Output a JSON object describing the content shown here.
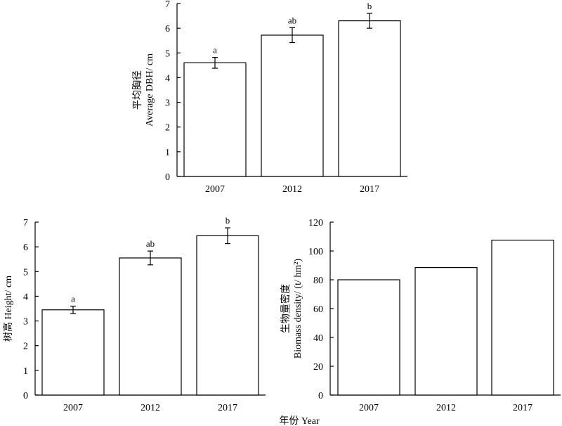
{
  "figure": {
    "shared_xlabel": "年份 Year"
  },
  "chart_data": [
    {
      "type": "bar",
      "panel": "top",
      "categories": [
        "2007",
        "2012",
        "2017"
      ],
      "values": [
        4.6,
        5.72,
        6.3
      ],
      "errors": [
        0.22,
        0.3,
        0.3
      ],
      "significance": [
        "a",
        "ab",
        "b"
      ],
      "ylabel_lines": [
        "平均胸径",
        "Average DBH/ cm"
      ],
      "ylim": [
        0,
        7
      ],
      "yticks": [
        "0",
        "1",
        "2",
        "3",
        "4",
        "5",
        "6",
        "7"
      ],
      "grid": false,
      "bar_fill": "#ffffff",
      "stroke": "#000000"
    },
    {
      "type": "bar",
      "panel": "bottom-left",
      "categories": [
        "2007",
        "2012",
        "2017"
      ],
      "values": [
        3.45,
        5.55,
        6.45
      ],
      "errors": [
        0.15,
        0.28,
        0.32
      ],
      "significance": [
        "a",
        "ab",
        "b"
      ],
      "ylabel_lines": [
        "树高 Height/ cm"
      ],
      "ylim": [
        0,
        7
      ],
      "yticks": [
        "0",
        "1",
        "2",
        "3",
        "4",
        "5",
        "6",
        "7"
      ],
      "grid": false,
      "bar_fill": "#ffffff",
      "stroke": "#000000"
    },
    {
      "type": "bar",
      "panel": "bottom-right",
      "categories": [
        "2007",
        "2012",
        "2017"
      ],
      "values": [
        80,
        88.5,
        107.5
      ],
      "ylabel_lines": [
        "生物量密度",
        "Biomass density/ (t/ hm²)"
      ],
      "ylim": [
        0,
        120
      ],
      "yticks": [
        "0",
        "20",
        "40",
        "60",
        "80",
        "100",
        "120"
      ],
      "grid": false,
      "bar_fill": "#ffffff",
      "stroke": "#000000"
    }
  ]
}
